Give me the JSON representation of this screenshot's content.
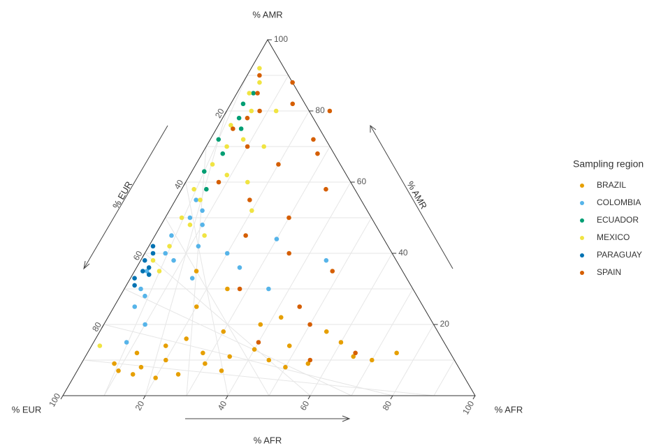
{
  "chart_data": {
    "type": "ternary",
    "axis_labels": {
      "amr": "% AMR",
      "eur": "% EUR",
      "afr": "% AFR"
    },
    "arrow_labels": {
      "amr": "% AMR",
      "eur": "% EUR",
      "afr": "% AFR"
    },
    "ticks": [
      20,
      40,
      60,
      80,
      100
    ],
    "minor_ticks": [
      10,
      20,
      30,
      40,
      50,
      60,
      70,
      80,
      90
    ],
    "grid": true,
    "legend_title": "Sampling region",
    "series": [
      {
        "name": "BRAZIL",
        "color": "#E69F00",
        "amr": [
          8,
          10,
          12,
          6,
          9,
          14,
          11,
          7,
          13,
          5,
          16,
          10,
          12,
          8,
          18,
          20,
          9,
          15,
          6,
          11,
          25,
          30,
          10,
          7,
          14,
          22,
          12,
          35,
          18,
          9
        ],
        "afr": [
          15,
          20,
          12,
          25,
          30,
          18,
          35,
          10,
          40,
          20,
          22,
          45,
          28,
          50,
          30,
          38,
          55,
          60,
          14,
          65,
          20,
          25,
          70,
          35,
          48,
          42,
          75,
          15,
          55,
          8
        ]
      },
      {
        "name": "COLOMBIA",
        "color": "#56B4E9",
        "amr": [
          35,
          40,
          45,
          38,
          50,
          30,
          42,
          48,
          55,
          33,
          28,
          40,
          36,
          25,
          44,
          52,
          20,
          30,
          15,
          38
        ],
        "afr": [
          3,
          5,
          4,
          8,
          6,
          4,
          12,
          10,
          5,
          15,
          6,
          20,
          25,
          5,
          30,
          8,
          10,
          35,
          8,
          45
        ]
      },
      {
        "name": "ECUADOR",
        "color": "#009E73",
        "amr": [
          82,
          78,
          72,
          68,
          63,
          75,
          85,
          58
        ],
        "afr": [
          3,
          4,
          2,
          5,
          3,
          6,
          4,
          6
        ]
      },
      {
        "name": "MEXICO",
        "color": "#F0E442",
        "amr": [
          92,
          88,
          85,
          80,
          76,
          72,
          70,
          65,
          62,
          58,
          55,
          50,
          48,
          45,
          42,
          38,
          35,
          70,
          60,
          52,
          14,
          80
        ],
        "afr": [
          2,
          4,
          3,
          6,
          3,
          8,
          5,
          4,
          9,
          3,
          6,
          4,
          7,
          12,
          5,
          3,
          6,
          14,
          15,
          20,
          2,
          12
        ]
      },
      {
        "name": "PARAGUAY",
        "color": "#0072B2",
        "amr": [
          38,
          35,
          33,
          36,
          40,
          31,
          34,
          42
        ],
        "afr": [
          1,
          2,
          1,
          3,
          2,
          2,
          4,
          1
        ]
      },
      {
        "name": "SPAIN",
        "color": "#D55E00",
        "amr": [
          90,
          85,
          80,
          75,
          70,
          88,
          82,
          78,
          65,
          72,
          60,
          55,
          50,
          45,
          40,
          30,
          25,
          20,
          15,
          10,
          68,
          58,
          80,
          35,
          12
        ],
        "afr": [
          3,
          5,
          8,
          4,
          10,
          12,
          15,
          6,
          20,
          25,
          8,
          18,
          30,
          22,
          35,
          28,
          45,
          50,
          40,
          55,
          28,
          35,
          25,
          48,
          65
        ]
      }
    ]
  }
}
